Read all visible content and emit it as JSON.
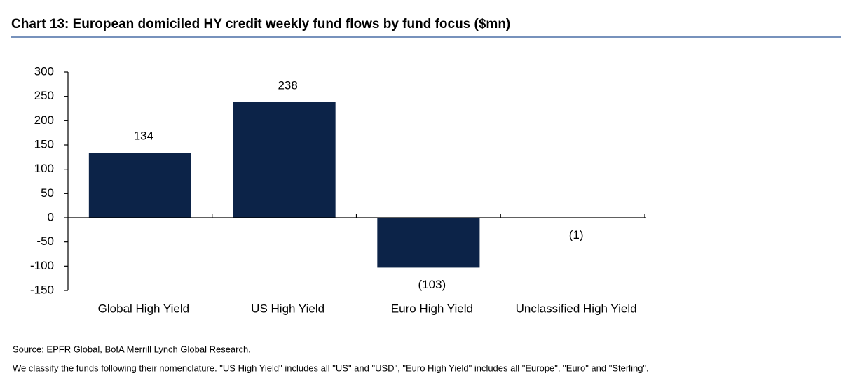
{
  "chart_data": {
    "type": "bar",
    "title": "Chart 13: European domiciled HY credit weekly fund flows by fund focus ($mn)",
    "categories": [
      "Global High Yield",
      "US High Yield",
      "Euro High Yield",
      "Unclassified High Yield"
    ],
    "values": [
      134,
      238,
      -103,
      -1
    ],
    "value_labels": [
      "134",
      "238",
      "(103)",
      "(1)"
    ],
    "color": "#0c2348",
    "negative_label_color": "#ff0000",
    "ylim": [
      -150,
      300
    ],
    "yticks": [
      -150,
      -100,
      -50,
      0,
      50,
      100,
      150,
      200,
      250,
      300
    ],
    "grid": false,
    "source": "Source: EPFR Global, BofA Merrill Lynch Global Research.",
    "note": "We classify the funds following their nomenclature. \"US High Yield\" includes all \"US\" and \"USD\", \"Euro High Yield\" includes all \"Europe\", \"Euro\" and \"Sterling\"."
  }
}
